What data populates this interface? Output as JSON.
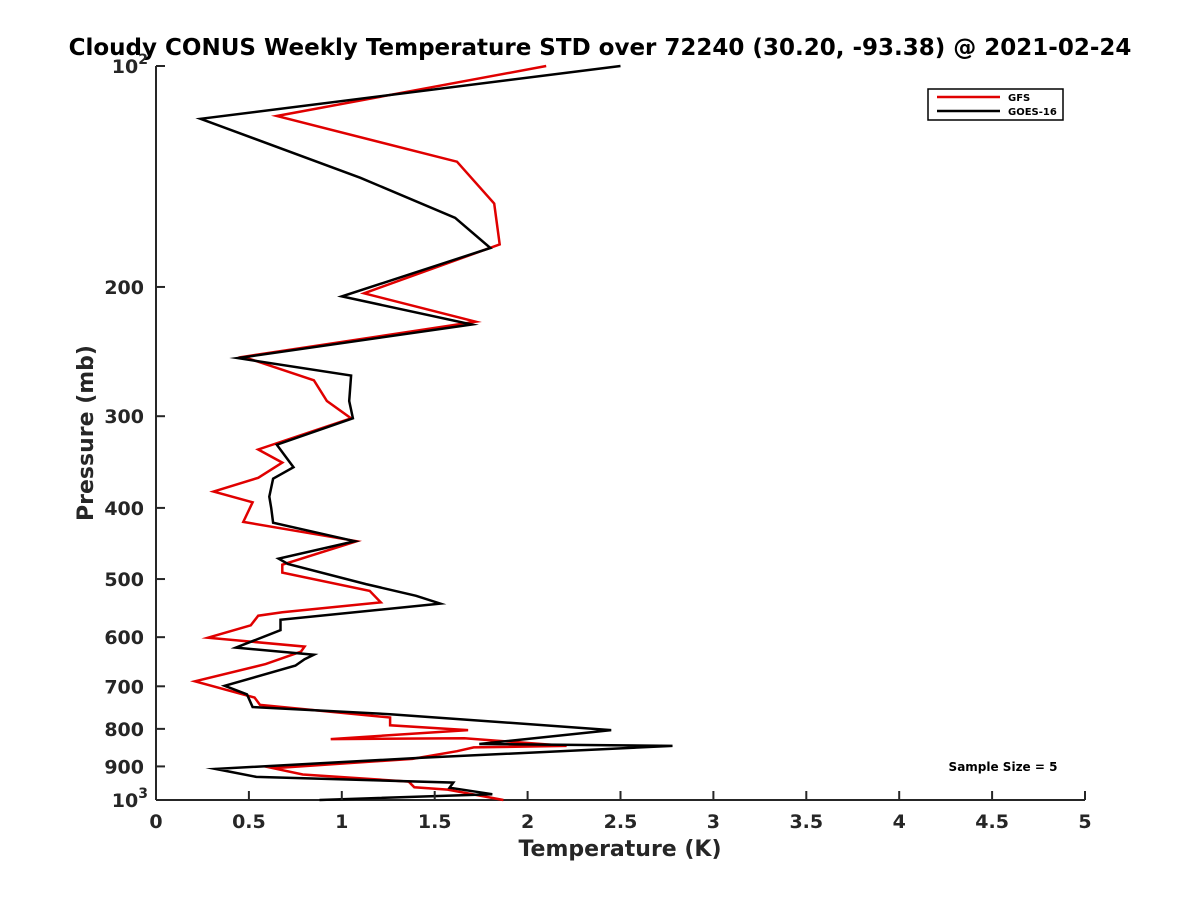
{
  "chart_data": {
    "type": "line",
    "title": "Cloudy CONUS Weekly Temperature STD over 72240 (30.20, -93.38) @ 2021-02-24",
    "xlabel": "Temperature (K)",
    "ylabel": "Pressure (mb)",
    "xlim": [
      0,
      5
    ],
    "ylim": [
      100,
      1000
    ],
    "yscale": "log",
    "y_reversed": true,
    "grid": false,
    "legend_position": "top-right",
    "x_ticks": [
      {
        "value": 0,
        "label": "0"
      },
      {
        "value": 0.5,
        "label": "0.5"
      },
      {
        "value": 1,
        "label": "1"
      },
      {
        "value": 1.5,
        "label": "1.5"
      },
      {
        "value": 2,
        "label": "2"
      },
      {
        "value": 2.5,
        "label": "2.5"
      },
      {
        "value": 3,
        "label": "3"
      },
      {
        "value": 3.5,
        "label": "3.5"
      },
      {
        "value": 4,
        "label": "4"
      },
      {
        "value": 4.5,
        "label": "4.5"
      },
      {
        "value": 5,
        "label": "5"
      }
    ],
    "y_ticks": [
      {
        "value": 100,
        "base": "10",
        "exp": "2"
      },
      {
        "value": 200,
        "label": "200"
      },
      {
        "value": 300,
        "label": "300"
      },
      {
        "value": 400,
        "label": "400"
      },
      {
        "value": 500,
        "label": "500"
      },
      {
        "value": 600,
        "label": "600"
      },
      {
        "value": 700,
        "label": "700"
      },
      {
        "value": 800,
        "label": "800"
      },
      {
        "value": 900,
        "label": "900"
      },
      {
        "value": 1000,
        "base": "10",
        "exp": "3"
      }
    ],
    "series": [
      {
        "name": "GFS",
        "color": "#e00000",
        "points": [
          [
            2.1,
            100
          ],
          [
            0.65,
            117
          ],
          [
            1.62,
            135
          ],
          [
            1.82,
            154
          ],
          [
            1.85,
            175
          ],
          [
            1.12,
            204
          ],
          [
            1.72,
            223
          ],
          [
            0.47,
            249
          ],
          [
            0.85,
            268
          ],
          [
            0.92,
            286
          ],
          [
            1.05,
            302
          ],
          [
            0.55,
            333
          ],
          [
            0.68,
            347
          ],
          [
            0.55,
            364
          ],
          [
            0.31,
            380
          ],
          [
            0.52,
            393
          ],
          [
            0.47,
            418
          ],
          [
            1.08,
            444
          ],
          [
            0.68,
            478
          ],
          [
            0.68,
            490
          ],
          [
            1.15,
            519
          ],
          [
            1.21,
            538
          ],
          [
            0.68,
            555
          ],
          [
            0.55,
            561
          ],
          [
            0.51,
            578
          ],
          [
            0.28,
            601
          ],
          [
            0.8,
            618
          ],
          [
            0.78,
            628
          ],
          [
            0.59,
            653
          ],
          [
            0.21,
            689
          ],
          [
            0.53,
            725
          ],
          [
            0.56,
            742
          ],
          [
            1.26,
            772
          ],
          [
            1.26,
            791
          ],
          [
            1.68,
            803
          ],
          [
            0.94,
            826
          ],
          [
            1.66,
            824
          ],
          [
            2.21,
            844
          ],
          [
            1.71,
            848
          ],
          [
            1.62,
            858
          ],
          [
            1.38,
            879
          ],
          [
            0.63,
            905
          ],
          [
            0.79,
            923
          ],
          [
            1.36,
            944
          ],
          [
            1.39,
            961
          ],
          [
            1.57,
            968
          ],
          [
            1.87,
            1000
          ]
        ]
      },
      {
        "name": "GOES-16",
        "color": "#000000",
        "points": [
          [
            2.5,
            100
          ],
          [
            0.24,
            118
          ],
          [
            1.1,
            142
          ],
          [
            1.61,
            161
          ],
          [
            1.8,
            177
          ],
          [
            1.0,
            206
          ],
          [
            1.7,
            225
          ],
          [
            0.44,
            250
          ],
          [
            1.05,
            264
          ],
          [
            1.04,
            286
          ],
          [
            1.06,
            302
          ],
          [
            0.65,
            328
          ],
          [
            0.74,
            352
          ],
          [
            0.63,
            365
          ],
          [
            0.61,
            386
          ],
          [
            0.62,
            400
          ],
          [
            0.63,
            419
          ],
          [
            1.07,
            444
          ],
          [
            0.66,
            469
          ],
          [
            0.71,
            477
          ],
          [
            1.13,
            508
          ],
          [
            1.4,
            527
          ],
          [
            1.53,
            540
          ],
          [
            0.67,
            568
          ],
          [
            0.67,
            587
          ],
          [
            0.43,
            620
          ],
          [
            0.85,
            634
          ],
          [
            0.8,
            643
          ],
          [
            0.75,
            656
          ],
          [
            0.37,
            699
          ],
          [
            0.49,
            718
          ],
          [
            0.52,
            747
          ],
          [
            1.26,
            764
          ],
          [
            2.45,
            803
          ],
          [
            1.74,
            839
          ],
          [
            2.78,
            844
          ],
          [
            1.43,
            876
          ],
          [
            0.32,
            907
          ],
          [
            0.54,
            930
          ],
          [
            1.6,
            947
          ],
          [
            1.58,
            962
          ],
          [
            1.81,
            982
          ],
          [
            0.88,
            1000
          ]
        ]
      }
    ],
    "annotations": [
      "Sample Size = 5"
    ]
  }
}
